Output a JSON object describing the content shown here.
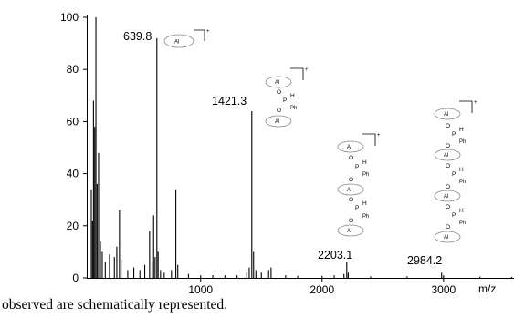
{
  "chart_data": {
    "type": "line",
    "xlabel": "m/z",
    "ylabel": "",
    "xlim": [
      70,
      3580
    ],
    "ylim": [
      0,
      100
    ],
    "xticks": [
      1000,
      2000,
      3000
    ],
    "yticks": [
      0,
      20,
      40,
      60,
      80,
      100
    ],
    "grid": false,
    "peaks": [
      {
        "x": 100,
        "y": 34
      },
      {
        "x": 110,
        "y": 22
      },
      {
        "x": 118,
        "y": 68
      },
      {
        "x": 128,
        "y": 58
      },
      {
        "x": 138,
        "y": 100
      },
      {
        "x": 148,
        "y": 36
      },
      {
        "x": 160,
        "y": 48
      },
      {
        "x": 175,
        "y": 14
      },
      {
        "x": 190,
        "y": 10
      },
      {
        "x": 215,
        "y": 6
      },
      {
        "x": 250,
        "y": 9
      },
      {
        "x": 290,
        "y": 8
      },
      {
        "x": 310,
        "y": 12
      },
      {
        "x": 332,
        "y": 26
      },
      {
        "x": 345,
        "y": 7
      },
      {
        "x": 400,
        "y": 3
      },
      {
        "x": 450,
        "y": 4
      },
      {
        "x": 500,
        "y": 3
      },
      {
        "x": 540,
        "y": 5
      },
      {
        "x": 580,
        "y": 18
      },
      {
        "x": 600,
        "y": 6
      },
      {
        "x": 613,
        "y": 24
      },
      {
        "x": 625,
        "y": 8
      },
      {
        "x": 639.8,
        "y": 92
      },
      {
        "x": 650,
        "y": 10
      },
      {
        "x": 670,
        "y": 3
      },
      {
        "x": 700,
        "y": 2
      },
      {
        "x": 760,
        "y": 3
      },
      {
        "x": 796,
        "y": 34
      },
      {
        "x": 812,
        "y": 5
      },
      {
        "x": 900,
        "y": 1.5
      },
      {
        "x": 1000,
        "y": 1
      },
      {
        "x": 1100,
        "y": 1
      },
      {
        "x": 1200,
        "y": 1
      },
      {
        "x": 1300,
        "y": 1
      },
      {
        "x": 1380,
        "y": 2
      },
      {
        "x": 1400,
        "y": 4
      },
      {
        "x": 1421.3,
        "y": 64
      },
      {
        "x": 1436,
        "y": 10
      },
      {
        "x": 1455,
        "y": 3
      },
      {
        "x": 1500,
        "y": 2
      },
      {
        "x": 1560,
        "y": 3
      },
      {
        "x": 1580,
        "y": 4
      },
      {
        "x": 1700,
        "y": 1
      },
      {
        "x": 1800,
        "y": 0.8
      },
      {
        "x": 2000,
        "y": 0.8
      },
      {
        "x": 2100,
        "y": 1
      },
      {
        "x": 2180,
        "y": 1.5
      },
      {
        "x": 2203.1,
        "y": 6
      },
      {
        "x": 2215,
        "y": 2
      },
      {
        "x": 2400,
        "y": 0.6
      },
      {
        "x": 2700,
        "y": 0.6
      },
      {
        "x": 2984.2,
        "y": 2
      },
      {
        "x": 3000,
        "y": 1
      },
      {
        "x": 3300,
        "y": 0.5
      },
      {
        "x": 3560,
        "y": 0.4
      }
    ],
    "annotations": [
      {
        "x": 639.8,
        "label": "639.8"
      },
      {
        "x": 1421.3,
        "label": "1421.3"
      },
      {
        "x": 2203.1,
        "label": "2203.1"
      },
      {
        "x": 2984.2,
        "label": "2984.2"
      }
    ],
    "structure_labels": {
      "al": "Al",
      "o": "O",
      "p": "P",
      "h": "H",
      "ph": "Ph",
      "charge": "+"
    }
  },
  "caption": "observed are schematically represented."
}
